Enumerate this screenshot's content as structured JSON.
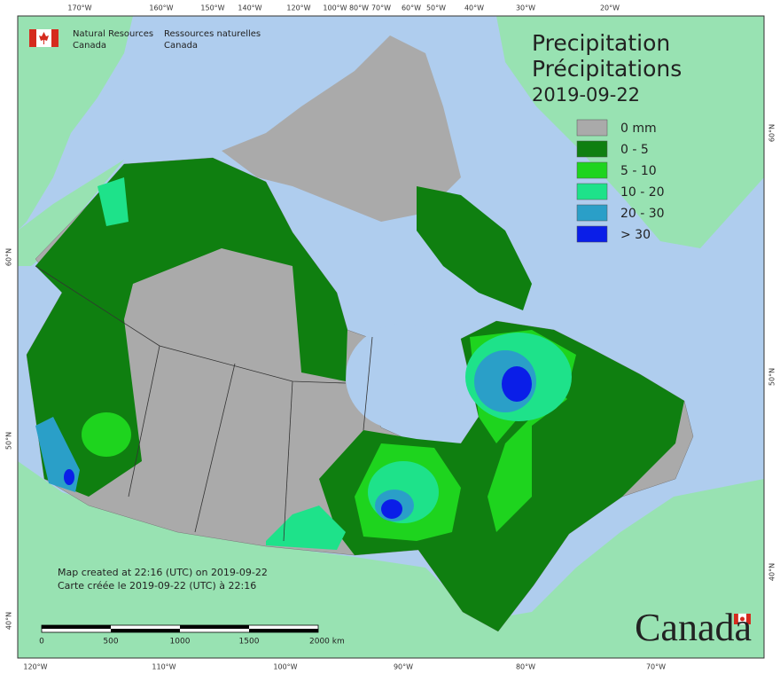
{
  "header": {
    "org_en": [
      "Natural Resources",
      "Canada"
    ],
    "org_fr": [
      "Ressources naturelles",
      "Canada"
    ]
  },
  "title": [
    "Precipitation",
    "Précipitations"
  ],
  "date": "2019-09-22",
  "legend": [
    {
      "label": "0 mm",
      "color": "#aaaaaa"
    },
    {
      "label": "0 - 5",
      "color": "#0f7f10"
    },
    {
      "label": "5 - 10",
      "color": "#1ed41e"
    },
    {
      "label": "10 - 20",
      "color": "#1ee28a"
    },
    {
      "label": "20 - 30",
      "color": "#2a9fc8"
    },
    {
      "label": "> 30",
      "color": "#0a1ee8"
    }
  ],
  "graticule": {
    "top": [
      "170°W",
      "160°W",
      "150°W",
      "140°W",
      "120°W",
      "100°W",
      "80°W",
      "70°W",
      "60°W",
      "50°W",
      "40°W",
      "30°W",
      "20°W"
    ],
    "bottom": [
      "120°W",
      "110°W",
      "100°W",
      "90°W",
      "80°W",
      "70°W"
    ],
    "left": [
      "60°N",
      "50°N",
      "40°N"
    ],
    "right": [
      "60°N",
      "50°N",
      "40°N"
    ]
  },
  "notes": [
    "Map created at 22:16 (UTC) on 2019-09-22",
    "Carte créée le 2019-09-22 (UTC) à 22:16"
  ],
  "scale": [
    "0",
    "500",
    "1000",
    "1500",
    "2000  km"
  ],
  "wordmark": "Canada"
}
